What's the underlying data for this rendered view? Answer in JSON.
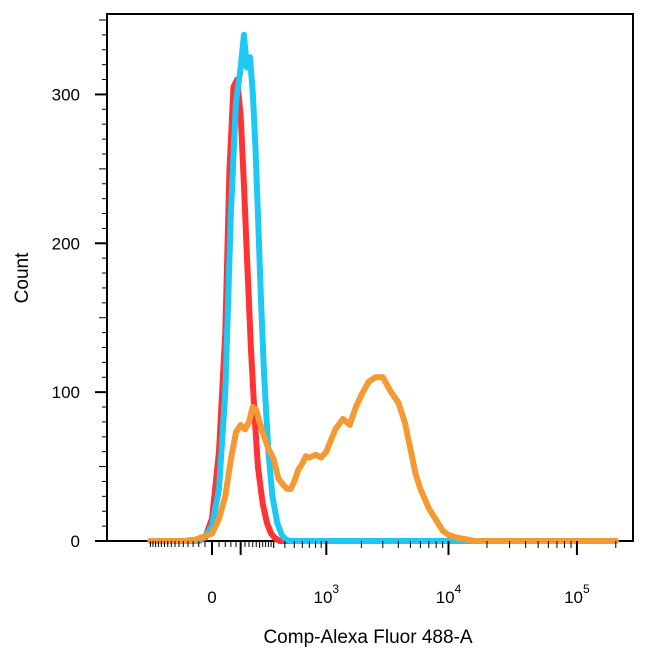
{
  "chart_data": {
    "type": "line",
    "title": "",
    "xlabel": "Comp-Alexa Fluor 488-A",
    "ylabel": "Count",
    "xscale": "biexponential",
    "xlim": [
      -300,
      200000
    ],
    "ylim": [
      0,
      350
    ],
    "y_ticks": [
      {
        "value": 0,
        "label": "0"
      },
      {
        "value": 100,
        "label": "100"
      },
      {
        "value": 200,
        "label": "200"
      },
      {
        "value": 300,
        "label": "300"
      }
    ],
    "x_ticks": [
      {
        "value": 0,
        "base": "0",
        "exp": ""
      },
      {
        "value": 1000,
        "base": "10",
        "exp": "3"
      },
      {
        "value": 10000,
        "base": "10",
        "exp": "4"
      },
      {
        "value": 100000,
        "base": "10",
        "exp": "5"
      }
    ],
    "grid": false,
    "legend": "none",
    "series": [
      {
        "color": "#ff3333",
        "x": [
          -300,
          -40,
          -20,
          0,
          20,
          40,
          55,
          70,
          85,
          100,
          115,
          130,
          150,
          170,
          190,
          220,
          250,
          280,
          310,
          350,
          400,
          1000,
          200000
        ],
        "y": [
          0,
          0,
          2,
          15,
          60,
          140,
          250,
          305,
          310,
          285,
          240,
          190,
          130,
          85,
          50,
          25,
          12,
          5,
          2,
          0,
          0,
          0,
          0
        ]
      },
      {
        "color": "#1ec8f4",
        "x": [
          -300,
          -40,
          -20,
          0,
          20,
          40,
          60,
          80,
          100,
          115,
          130,
          145,
          160,
          175,
          190,
          210,
          230,
          260,
          290,
          330,
          370,
          410,
          450,
          500,
          600,
          1000,
          200000
        ],
        "y": [
          0,
          0,
          3,
          10,
          35,
          100,
          220,
          295,
          318,
          340,
          318,
          325,
          302,
          265,
          220,
          160,
          110,
          60,
          30,
          12,
          4,
          1,
          0,
          0,
          0,
          0,
          0
        ]
      },
      {
        "color": "#f59a33",
        "x": [
          -300,
          -100,
          -50,
          0,
          20,
          40,
          60,
          80,
          100,
          120,
          140,
          160,
          180,
          200,
          230,
          260,
          300,
          340,
          380,
          420,
          460,
          500,
          550,
          600,
          650,
          700,
          800,
          900,
          1000,
          1200,
          1400,
          1600,
          1800,
          2000,
          2300,
          2600,
          3000,
          3500,
          4000,
          4500,
          5000,
          5500,
          6000,
          7000,
          8000,
          9000,
          10000,
          12000,
          14000,
          16000,
          20000,
          30000,
          200000
        ],
        "y": [
          0,
          0,
          1,
          5,
          15,
          30,
          55,
          73,
          78,
          75,
          80,
          90,
          88,
          80,
          70,
          62,
          55,
          42,
          38,
          35,
          35,
          40,
          48,
          52,
          57,
          56,
          58,
          56,
          60,
          75,
          82,
          78,
          90,
          98,
          107,
          110,
          110,
          100,
          93,
          80,
          62,
          45,
          35,
          22,
          14,
          7,
          4,
          2,
          1,
          0,
          0,
          0,
          0
        ]
      }
    ]
  }
}
